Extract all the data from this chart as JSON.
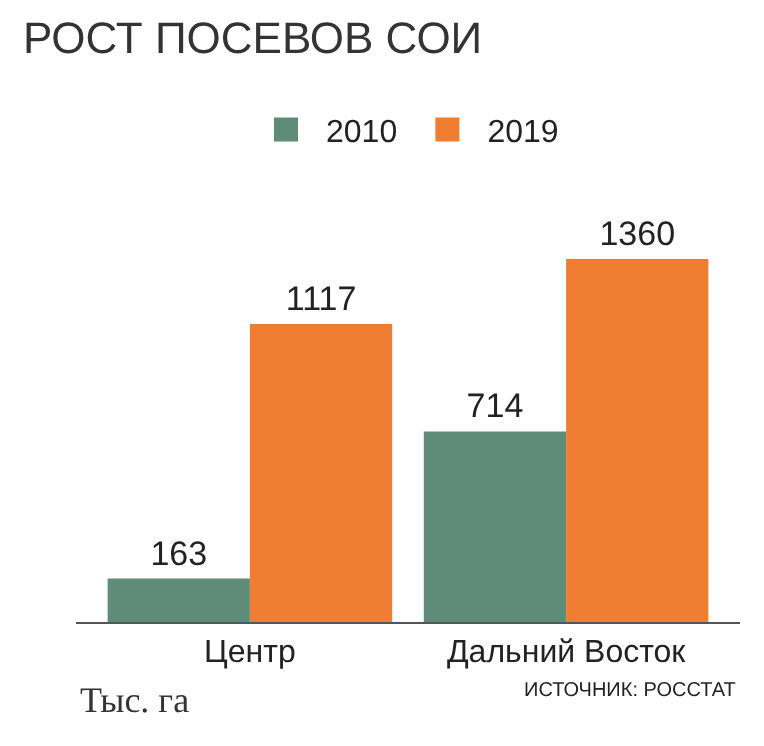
{
  "chart_data": {
    "type": "bar",
    "title": "РОСТ ПОСЕВОВ СОИ",
    "categories": [
      "Центр",
      "Дальний Восток"
    ],
    "series": [
      {
        "name": "2010",
        "color": "#5e8c78",
        "values": [
          163,
          714
        ]
      },
      {
        "name": "2019",
        "color": "#ef7d32",
        "values": [
          1117,
          1360
        ]
      }
    ],
    "data_labels": true,
    "legend": "top",
    "annotations": [
      "Тыс. га",
      "ИСТОЧНИК: РОССТАТ"
    ]
  }
}
